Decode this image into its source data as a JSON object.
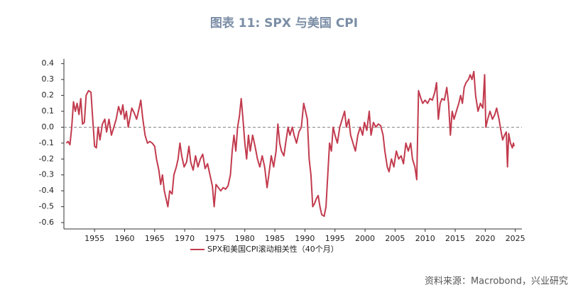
{
  "chart_data": {
    "type": "line",
    "title": "图表 11: SPX 与美国 CPI",
    "source": "资料来源：Macrobond，兴业研究",
    "xlim": [
      1949.9,
      2026.1
    ],
    "xticks": [
      1955,
      1960,
      1965,
      1970,
      1975,
      1980,
      1985,
      1990,
      1995,
      2000,
      2005,
      2010,
      2015,
      2020,
      2025
    ],
    "ylim": [
      -0.64,
      0.43
    ],
    "yticks": [
      -0.6,
      -0.5,
      -0.4,
      -0.3,
      -0.2,
      -0.1,
      {
        "value": 0,
        "label": "0.0"
      },
      0.1,
      0.2,
      0.3,
      0.4
    ],
    "hline": 0,
    "legend": "bottom",
    "x": [
      1950.3,
      1950.6,
      1950.9,
      1951.2,
      1951.5,
      1951.8,
      1952.1,
      1952.4,
      1952.7,
      1953.0,
      1953.3,
      1953.6,
      1954.0,
      1954.4,
      1954.7,
      1955.0,
      1955.3,
      1955.6,
      1955.9,
      1956.3,
      1956.7,
      1957.0,
      1957.4,
      1957.8,
      1958.2,
      1958.6,
      1959.0,
      1959.4,
      1959.7,
      1960.0,
      1960.3,
      1960.6,
      1960.9,
      1961.2,
      1961.6,
      1962.0,
      1962.3,
      1962.7,
      1963.0,
      1963.4,
      1963.8,
      1964.2,
      1964.6,
      1965.0,
      1965.3,
      1965.7,
      1966.0,
      1966.3,
      1966.6,
      1966.9,
      1967.2,
      1967.5,
      1967.9,
      1968.2,
      1968.6,
      1968.9,
      1969.2,
      1969.5,
      1969.9,
      1970.3,
      1970.7,
      1971.0,
      1971.4,
      1971.8,
      1972.2,
      1972.6,
      1973.0,
      1973.4,
      1973.8,
      1974.2,
      1974.6,
      1974.9,
      1975.2,
      1975.6,
      1976.0,
      1976.4,
      1976.8,
      1977.2,
      1977.6,
      1977.9,
      1978.2,
      1978.5,
      1978.8,
      1979.1,
      1979.4,
      1979.7,
      1980.0,
      1980.3,
      1980.6,
      1980.9,
      1981.3,
      1981.7,
      1982.1,
      1982.5,
      1982.9,
      1983.3,
      1983.7,
      1984.0,
      1984.4,
      1984.8,
      1985.2,
      1985.5,
      1985.8,
      1986.1,
      1986.5,
      1986.8,
      1987.2,
      1987.5,
      1987.9,
      1988.2,
      1988.6,
      1989.0,
      1989.4,
      1989.8,
      1990.1,
      1990.4,
      1990.7,
      1991.0,
      1991.3,
      1991.6,
      1991.9,
      1992.2,
      1992.5,
      1992.8,
      1993.2,
      1993.5,
      1993.8,
      1994.1,
      1994.4,
      1994.7,
      1995.0,
      1995.4,
      1995.8,
      1996.2,
      1996.6,
      1996.9,
      1997.3,
      1997.6,
      1998.0,
      1998.4,
      1998.8,
      1999.2,
      1999.6,
      1999.9,
      2000.3,
      2000.7,
      2001.0,
      2001.4,
      2001.8,
      2002.2,
      2002.6,
      2003.0,
      2003.3,
      2003.7,
      2004.0,
      2004.4,
      2004.8,
      2005.2,
      2005.6,
      2006.0,
      2006.4,
      2006.8,
      2007.2,
      2007.6,
      2007.9,
      2008.3,
      2008.6,
      2008.9,
      2009.3,
      2009.6,
      2010.0,
      2010.4,
      2010.8,
      2011.2,
      2011.6,
      2011.9,
      2012.2,
      2012.5,
      2012.8,
      2013.2,
      2013.6,
      2013.9,
      2014.2,
      2014.5,
      2014.8,
      2015.2,
      2015.6,
      2015.9,
      2016.2,
      2016.5,
      2016.8,
      2017.2,
      2017.5,
      2017.8,
      2018.1,
      2018.4,
      2018.8,
      2019.2,
      2019.6,
      2019.9,
      2020.1,
      2020.4,
      2020.8,
      2021.2,
      2021.6,
      2021.9,
      2022.3,
      2022.6,
      2022.9,
      2023.2,
      2023.5,
      2023.7,
      2023.9,
      2024.2,
      2024.5,
      2024.7,
      2024.8
    ],
    "series": [
      {
        "name": "SPX和美国CPI滚动相关性（40个月）",
        "color": "#c23b4e",
        "values": [
          -0.1,
          -0.09,
          -0.11,
          0.0,
          0.16,
          0.1,
          0.15,
          0.08,
          0.18,
          0.02,
          0.03,
          0.2,
          0.23,
          0.22,
          0.05,
          -0.12,
          -0.13,
          0.0,
          -0.08,
          0.02,
          0.05,
          -0.03,
          0.05,
          -0.05,
          0.0,
          0.05,
          0.13,
          0.08,
          0.14,
          0.05,
          0.1,
          0.0,
          0.06,
          0.12,
          0.09,
          0.05,
          0.1,
          0.17,
          0.06,
          -0.05,
          -0.1,
          -0.09,
          -0.1,
          -0.12,
          -0.2,
          -0.27,
          -0.36,
          -0.3,
          -0.4,
          -0.45,
          -0.5,
          -0.4,
          -0.42,
          -0.3,
          -0.25,
          -0.2,
          -0.1,
          -0.18,
          -0.25,
          -0.22,
          -0.12,
          -0.22,
          -0.27,
          -0.18,
          -0.25,
          -0.2,
          -0.17,
          -0.26,
          -0.23,
          -0.3,
          -0.37,
          -0.5,
          -0.36,
          -0.38,
          -0.4,
          -0.38,
          -0.39,
          -0.37,
          -0.3,
          -0.15,
          -0.05,
          -0.15,
          0.0,
          0.07,
          0.18,
          0.05,
          -0.1,
          -0.2,
          -0.05,
          -0.15,
          -0.05,
          -0.12,
          -0.2,
          -0.25,
          -0.18,
          -0.25,
          -0.38,
          -0.3,
          -0.18,
          -0.25,
          -0.15,
          0.02,
          -0.1,
          -0.15,
          -0.18,
          -0.1,
          0.0,
          -0.05,
          0.0,
          -0.05,
          -0.1,
          -0.03,
          0.0,
          0.15,
          0.1,
          0.05,
          -0.2,
          -0.3,
          -0.5,
          -0.48,
          -0.45,
          -0.43,
          -0.5,
          -0.55,
          -0.56,
          -0.5,
          -0.3,
          -0.1,
          -0.15,
          0.0,
          -0.05,
          -0.1,
          0.0,
          0.05,
          0.1,
          0.0,
          0.05,
          -0.05,
          -0.1,
          -0.15,
          -0.05,
          0.0,
          -0.05,
          0.03,
          -0.02,
          0.1,
          -0.05,
          0.03,
          0.0,
          0.02,
          0.01,
          -0.05,
          -0.15,
          -0.25,
          -0.28,
          -0.2,
          -0.25,
          -0.15,
          -0.2,
          -0.18,
          -0.23,
          -0.1,
          -0.15,
          -0.1,
          -0.2,
          -0.25,
          -0.33,
          0.23,
          0.18,
          0.15,
          0.17,
          0.15,
          0.18,
          0.17,
          0.22,
          0.28,
          0.05,
          0.15,
          0.18,
          0.17,
          0.25,
          0.15,
          -0.05,
          0.1,
          0.05,
          0.1,
          0.15,
          0.2,
          0.15,
          0.25,
          0.28,
          0.3,
          0.33,
          0.3,
          0.35,
          0.2,
          0.1,
          0.15,
          0.12,
          0.33,
          0.0,
          0.05,
          0.1,
          0.05,
          0.08,
          0.12,
          0.05,
          -0.02,
          -0.08,
          -0.05,
          -0.03,
          -0.25,
          -0.04,
          -0.1,
          -0.13,
          -0.1,
          -0.12
        ]
      }
    ]
  }
}
